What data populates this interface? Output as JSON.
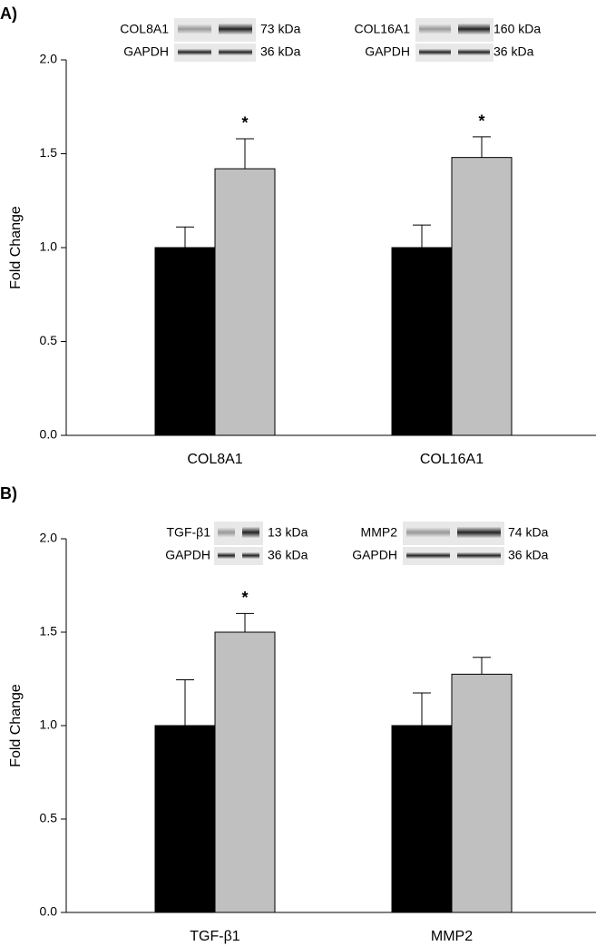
{
  "chart_data": [
    {
      "type": "bar",
      "panel": "A)",
      "ylabel": "Fold Change",
      "categories": [
        "COL8A1",
        "COL16A1"
      ],
      "series": [
        {
          "color": "#000000",
          "values": [
            1.0,
            1.0
          ],
          "errors": [
            0.11,
            0.12
          ]
        },
        {
          "color": "#c0c0c0",
          "values": [
            1.42,
            1.48
          ],
          "errors": [
            0.16,
            0.11
          ],
          "annotations": [
            "*",
            "*"
          ]
        }
      ],
      "ylim": [
        0,
        2.0
      ],
      "yticks": [
        {
          "value": 0,
          "label": "0.0"
        },
        {
          "value": 0.5,
          "label": "0.5"
        },
        {
          "value": 1.0,
          "label": "1.0"
        },
        {
          "value": 1.5,
          "label": "1.5"
        },
        {
          "value": 2.0,
          "label": "2.0"
        }
      ],
      "blots": [
        {
          "protein": "COL8A1",
          "protein_kda": "73 kDa",
          "control": "GAPDH",
          "control_kda": "36 kDa"
        },
        {
          "protein": "COL16A1",
          "protein_kda": "160 kDa",
          "control": "GAPDH",
          "control_kda": "36 kDa"
        }
      ]
    },
    {
      "type": "bar",
      "panel": "B)",
      "ylabel": "Fold Change",
      "categories": [
        "TGF-β1",
        "MMP2"
      ],
      "series": [
        {
          "color": "#000000",
          "values": [
            1.0,
            1.0
          ],
          "errors": [
            0.245,
            0.175
          ]
        },
        {
          "color": "#c0c0c0",
          "values": [
            1.5,
            1.275
          ],
          "errors": [
            0.1,
            0.09
          ],
          "annotations": [
            "*",
            null
          ]
        }
      ],
      "ylim": [
        0,
        2.0
      ],
      "yticks": [
        {
          "value": 0,
          "label": "0.0"
        },
        {
          "value": 0.5,
          "label": "0.5"
        },
        {
          "value": 1.0,
          "label": "1.0"
        },
        {
          "value": 1.5,
          "label": "1.5"
        },
        {
          "value": 2.0,
          "label": "2.0"
        }
      ],
      "blots": [
        {
          "protein": "TGF-β1",
          "protein_kda": "13 kDa",
          "control": "GAPDH",
          "control_kda": "36 kDa"
        },
        {
          "protein": "MMP2",
          "protein_kda": "74 kDa",
          "control": "GAPDH",
          "control_kda": "36 kDa"
        }
      ]
    }
  ]
}
